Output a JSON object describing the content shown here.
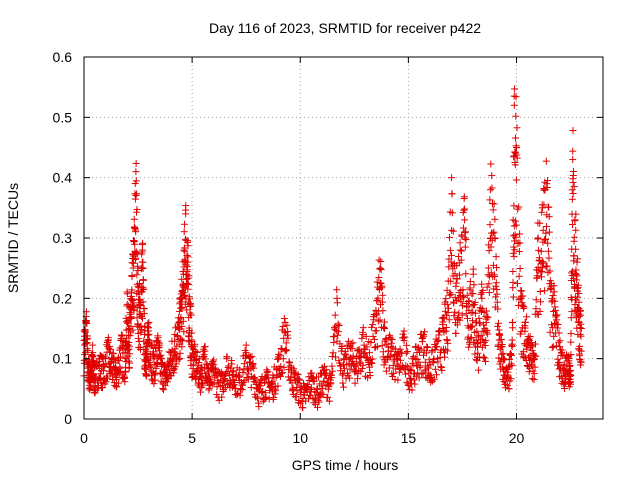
{
  "chart_data": {
    "type": "scatter",
    "title": "Day 116 of 2023, SRMTID for receiver p422",
    "xlabel": "GPS time / hours",
    "ylabel": "SRMTID / TECUs",
    "xlim": [
      0,
      24
    ],
    "ylim": [
      0,
      0.6
    ],
    "x_ticks": [
      0,
      5,
      10,
      15,
      20
    ],
    "x_tick_labels": [
      "0",
      "5",
      "10",
      "15",
      "20"
    ],
    "y_ticks": [
      0,
      0.1,
      0.2,
      0.3,
      0.4,
      0.5,
      0.6
    ],
    "y_tick_labels": [
      "0",
      "0.1",
      "0.2",
      "0.3",
      "0.4",
      "0.5",
      "0.6"
    ],
    "grid": true,
    "marker": "plus",
    "color": "#e00000",
    "points_note": "dense time series of ~thousands of samples; key values read from figure",
    "series": [
      {
        "name": "p422",
        "x": [
          0.0,
          0.1,
          0.2,
          0.3,
          0.4,
          0.5,
          0.7,
          0.9,
          1.1,
          1.3,
          1.5,
          1.7,
          1.9,
          2.0,
          2.1,
          2.2,
          2.3,
          2.4,
          2.5,
          2.6,
          2.7,
          2.8,
          2.9,
          3.0,
          3.2,
          3.4,
          3.6,
          3.8,
          4.0,
          4.2,
          4.4,
          4.5,
          4.6,
          4.7,
          4.8,
          4.9,
          5.0,
          5.2,
          5.4,
          5.6,
          5.8,
          6.0,
          6.3,
          6.6,
          6.9,
          7.2,
          7.5,
          7.8,
          8.1,
          8.4,
          8.7,
          9.0,
          9.3,
          9.6,
          9.9,
          10.2,
          10.5,
          10.8,
          11.1,
          11.4,
          11.7,
          12.0,
          12.3,
          12.6,
          12.9,
          13.2,
          13.5,
          13.7,
          13.9,
          14.2,
          14.5,
          14.8,
          15.1,
          15.4,
          15.7,
          16.0,
          16.3,
          16.6,
          16.8,
          17.0,
          17.2,
          17.4,
          17.6,
          17.8,
          18.0,
          18.2,
          18.4,
          18.6,
          18.8,
          19.0,
          19.2,
          19.4,
          19.6,
          19.8,
          19.9,
          20.0,
          20.2,
          20.4,
          20.6,
          20.8,
          21.0,
          21.2,
          21.4,
          21.6,
          21.8,
          22.0,
          22.2,
          22.4,
          22.5,
          22.6,
          22.7,
          22.8,
          22.9,
          23.0
        ],
        "y": [
          0.13,
          0.17,
          0.09,
          0.08,
          0.11,
          0.07,
          0.1,
          0.09,
          0.12,
          0.1,
          0.08,
          0.13,
          0.11,
          0.19,
          0.15,
          0.21,
          0.27,
          0.41,
          0.22,
          0.19,
          0.28,
          0.14,
          0.12,
          0.16,
          0.1,
          0.13,
          0.09,
          0.08,
          0.11,
          0.14,
          0.16,
          0.2,
          0.24,
          0.34,
          0.26,
          0.19,
          0.12,
          0.1,
          0.08,
          0.12,
          0.07,
          0.09,
          0.06,
          0.1,
          0.08,
          0.07,
          0.11,
          0.09,
          0.05,
          0.07,
          0.06,
          0.1,
          0.16,
          0.08,
          0.06,
          0.04,
          0.07,
          0.05,
          0.08,
          0.06,
          0.2,
          0.09,
          0.12,
          0.1,
          0.14,
          0.11,
          0.18,
          0.25,
          0.15,
          0.12,
          0.1,
          0.13,
          0.08,
          0.11,
          0.14,
          0.09,
          0.12,
          0.15,
          0.19,
          0.4,
          0.22,
          0.28,
          0.33,
          0.18,
          0.24,
          0.12,
          0.2,
          0.16,
          0.38,
          0.3,
          0.14,
          0.1,
          0.07,
          0.12,
          0.52,
          0.45,
          0.2,
          0.16,
          0.13,
          0.1,
          0.3,
          0.35,
          0.39,
          0.22,
          0.18,
          0.12,
          0.09,
          0.1,
          0.08,
          0.43,
          0.33,
          0.26,
          0.17,
          0.15
        ]
      }
    ]
  }
}
